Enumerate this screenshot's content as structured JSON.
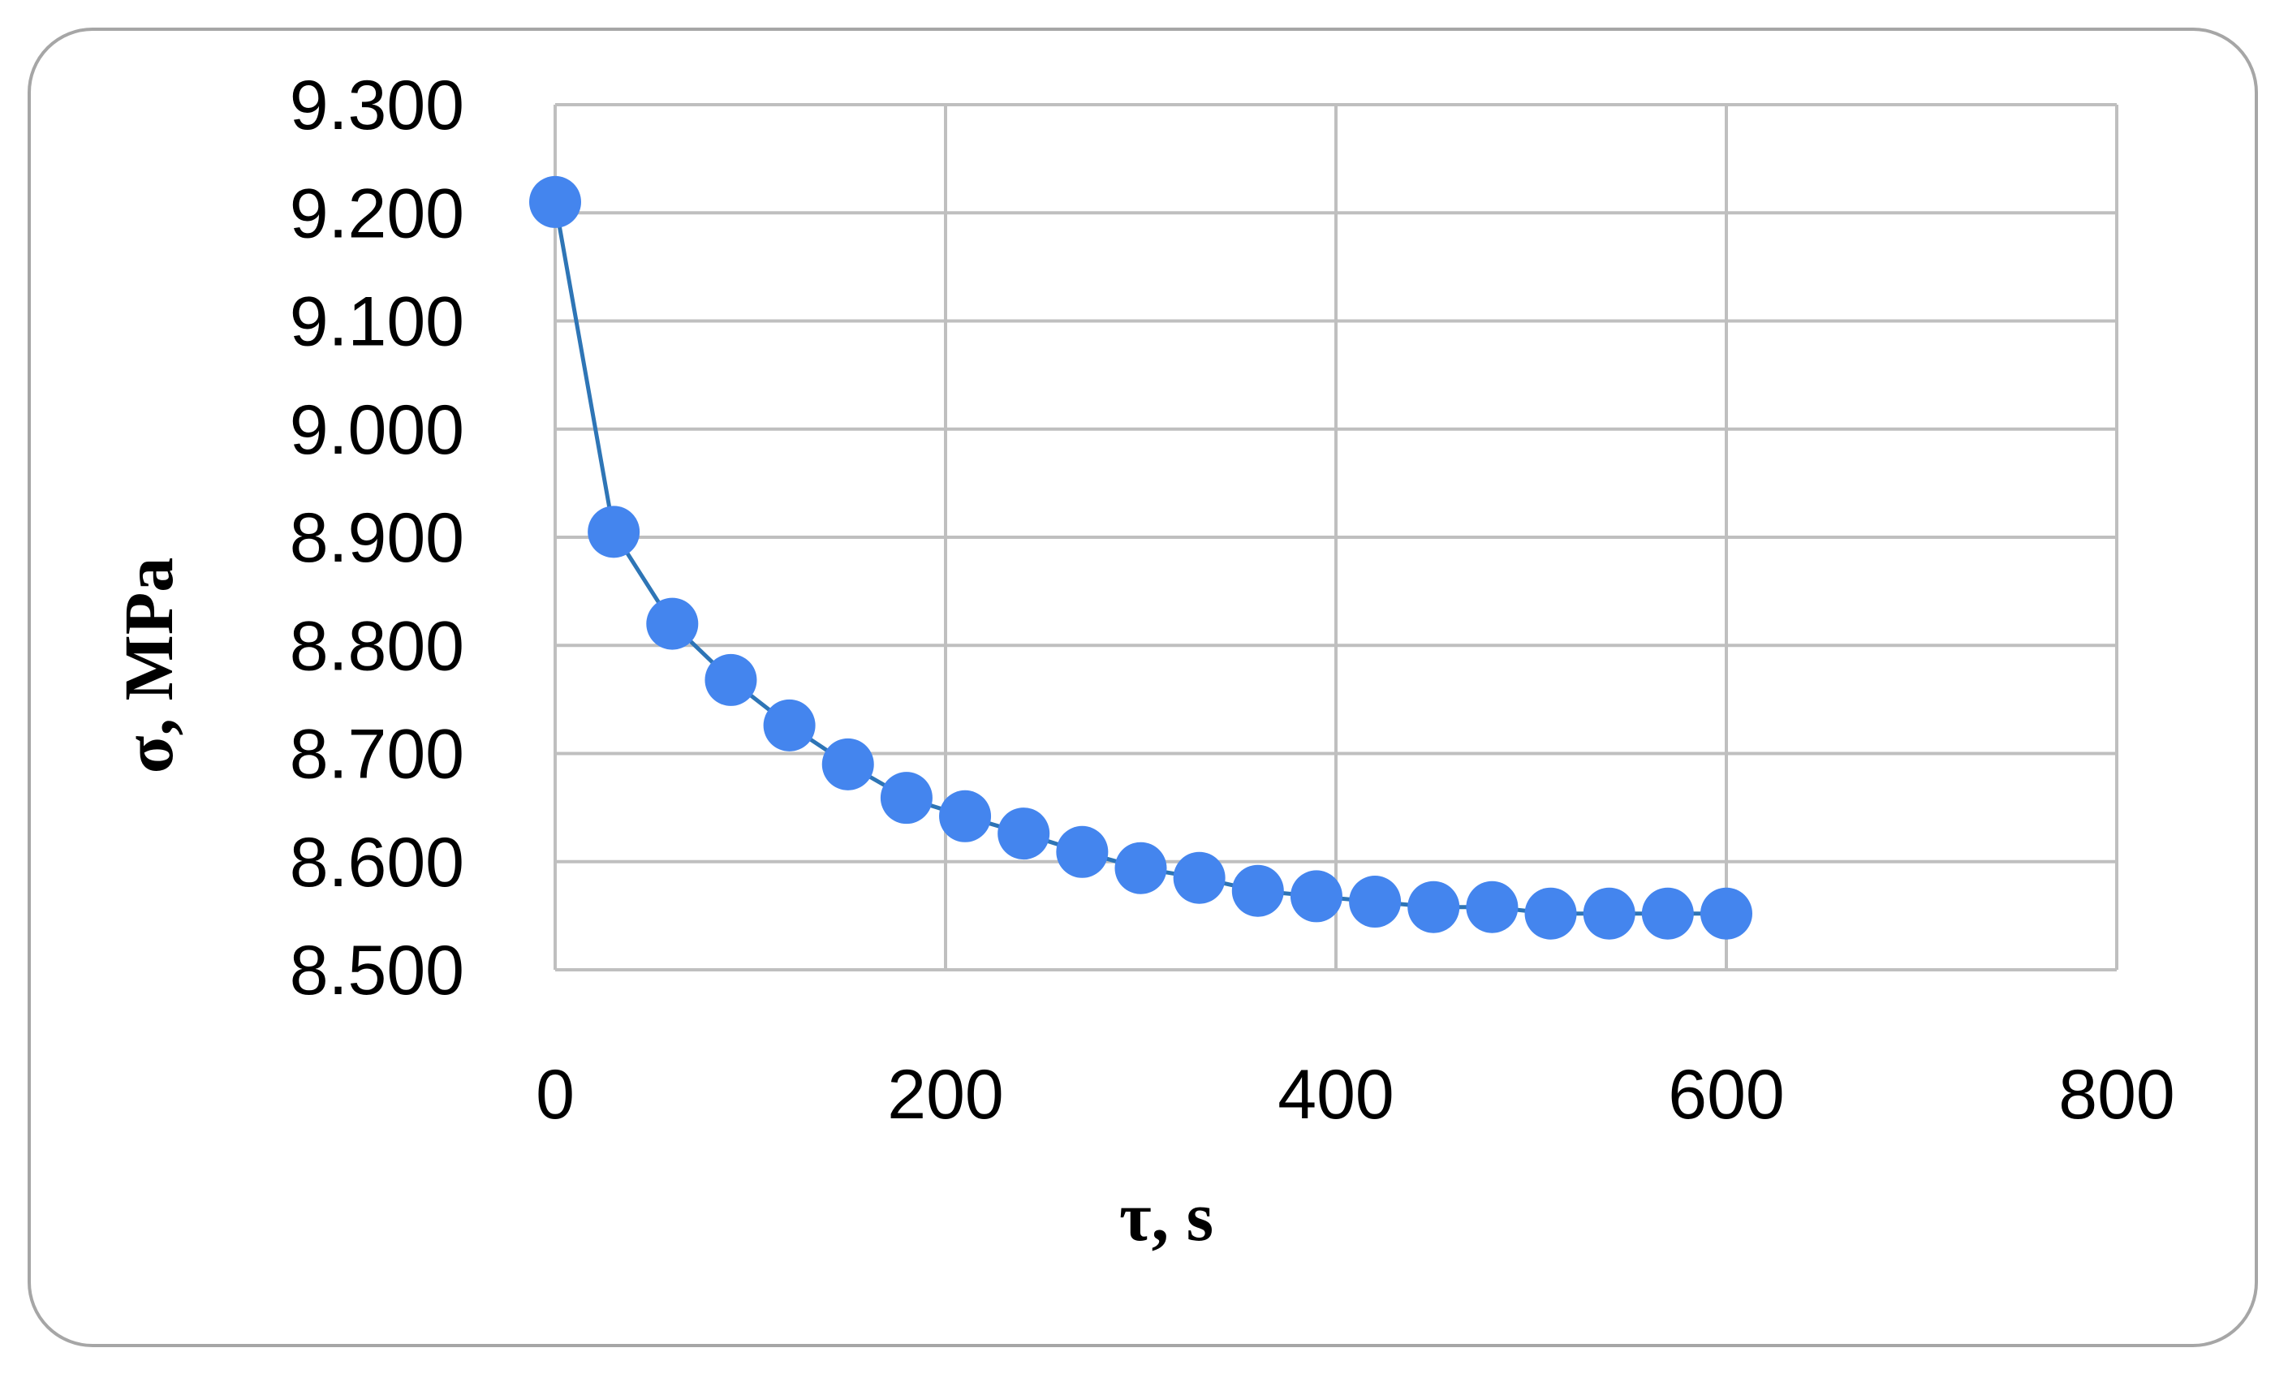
{
  "chart_data": {
    "type": "scatter",
    "xlabel": "τ, s",
    "ylabel": "σ, MPa",
    "xlim": [
      0,
      800
    ],
    "ylim": [
      8.5,
      9.3
    ],
    "x_ticks": [
      "0",
      "200",
      "400",
      "600",
      "800"
    ],
    "x_tick_values": [
      0,
      200,
      400,
      600,
      800
    ],
    "y_ticks": [
      "8.500",
      "8.600",
      "8.700",
      "8.800",
      "8.900",
      "9.000",
      "9.100",
      "9.200",
      "9.300"
    ],
    "y_tick_values": [
      8.5,
      8.6,
      8.7,
      8.8,
      8.9,
      9.0,
      9.1,
      9.2,
      9.3
    ],
    "grid": true,
    "legend": "none",
    "series": [
      {
        "color": "#4485ee",
        "line_color": "#2e75b6",
        "points": [
          {
            "x": 0,
            "y": 9.21
          },
          {
            "x": 30,
            "y": 8.905
          },
          {
            "x": 60,
            "y": 8.82
          },
          {
            "x": 90,
            "y": 8.768
          },
          {
            "x": 120,
            "y": 8.726
          },
          {
            "x": 150,
            "y": 8.69
          },
          {
            "x": 180,
            "y": 8.659
          },
          {
            "x": 210,
            "y": 8.642
          },
          {
            "x": 240,
            "y": 8.626
          },
          {
            "x": 270,
            "y": 8.609
          },
          {
            "x": 300,
            "y": 8.594
          },
          {
            "x": 330,
            "y": 8.585
          },
          {
            "x": 360,
            "y": 8.573
          },
          {
            "x": 390,
            "y": 8.568
          },
          {
            "x": 420,
            "y": 8.563
          },
          {
            "x": 450,
            "y": 8.558
          },
          {
            "x": 480,
            "y": 8.558
          },
          {
            "x": 510,
            "y": 8.552
          },
          {
            "x": 540,
            "y": 8.552
          },
          {
            "x": 570,
            "y": 8.552
          },
          {
            "x": 600,
            "y": 8.552
          }
        ]
      }
    ]
  }
}
